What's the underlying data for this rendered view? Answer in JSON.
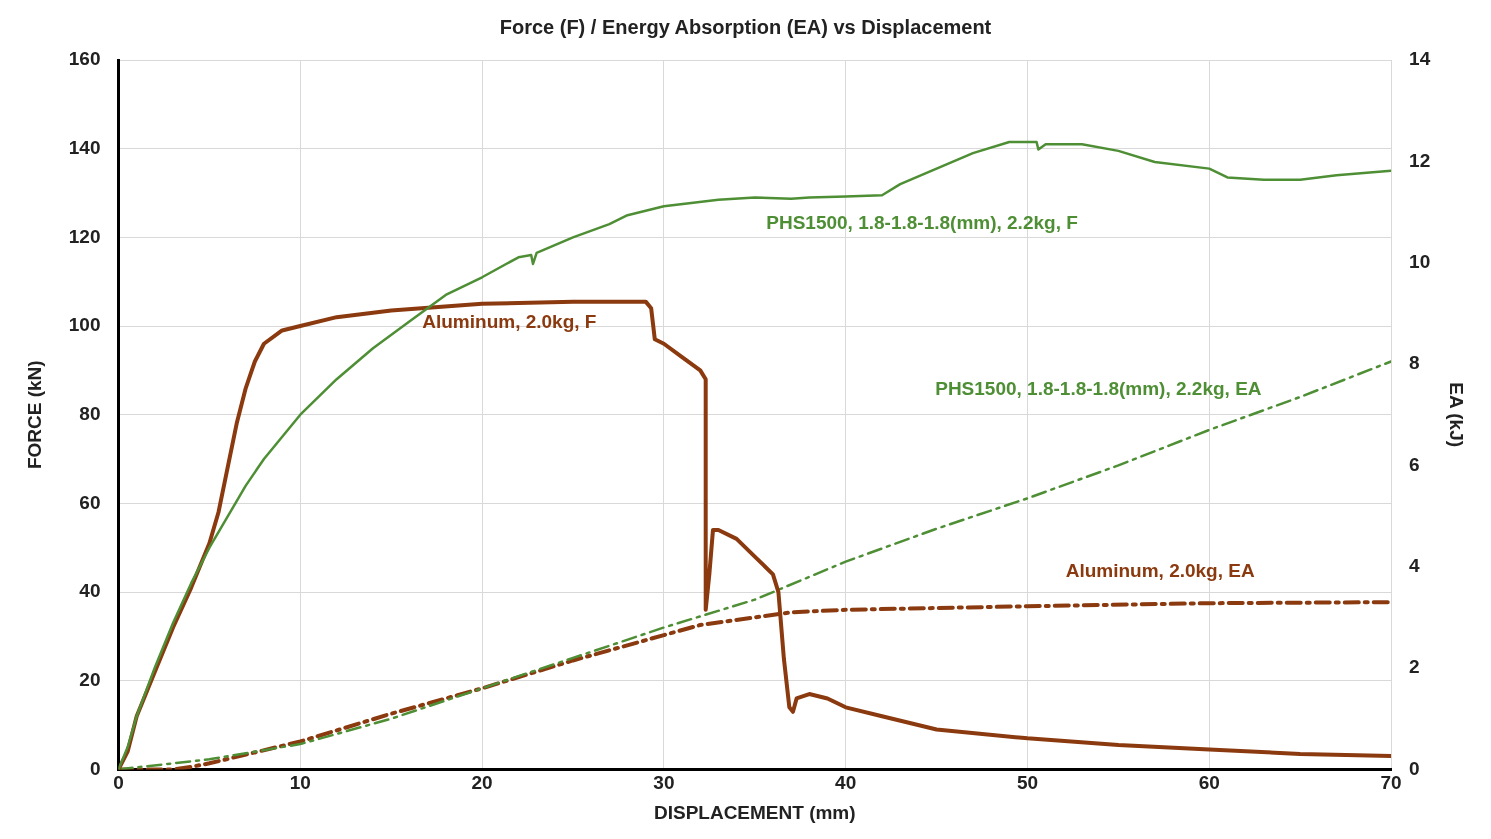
{
  "chart_data": {
    "type": "line",
    "title": "Force (F) / Energy Absorption (EA) vs Displacement",
    "xlabel": "DISPLACEMENT (mm)",
    "ylabel": "FORCE (kN)",
    "y2label": "EA (kJ)",
    "xlim": [
      0,
      70
    ],
    "xticks": [
      0,
      10,
      20,
      30,
      40,
      50,
      60,
      70
    ],
    "ylim": [
      0,
      160
    ],
    "yticks": [
      0,
      20,
      40,
      60,
      80,
      100,
      120,
      140,
      160
    ],
    "y2lim": [
      0,
      14
    ],
    "y2ticks": [
      0,
      2,
      4,
      6,
      8,
      10,
      12,
      14
    ],
    "grid": true,
    "legend": false,
    "marker": "none",
    "series": [
      {
        "name": "PHS1500, 1.8-1.8-1.8(mm), 2.2kg, F",
        "color": "#4e8f35",
        "line_style": "solid",
        "x": [
          0,
          0.5,
          1,
          2,
          3,
          4,
          5,
          6,
          7,
          8,
          10,
          12,
          14,
          16,
          18,
          20,
          22,
          22.7,
          22.8,
          23,
          25,
          27,
          28,
          30,
          33,
          35,
          37,
          38,
          40,
          42,
          43,
          45,
          47,
          49,
          50.5,
          50.6,
          51,
          53,
          55,
          57,
          60,
          61,
          63,
          65,
          67,
          70
        ],
        "values": [
          0,
          5,
          12,
          23,
          33,
          42,
          50,
          57,
          64,
          70,
          80,
          88,
          95,
          101,
          107,
          111,
          115.5,
          116,
          114,
          116.5,
          120,
          123,
          125,
          127,
          128.5,
          129,
          128.7,
          129,
          129.2,
          129.5,
          132,
          135.5,
          139,
          141.5,
          141.5,
          139.8,
          141,
          141,
          139.5,
          137,
          135.5,
          133.5,
          133,
          133,
          134,
          135
        ]
      },
      {
        "name": "Aluminum, 2.0kg, F",
        "color": "#8b3a0f",
        "line_style": "solid",
        "x": [
          0,
          0.5,
          1,
          2,
          3,
          4,
          5,
          5.5,
          6,
          6.5,
          7,
          7.5,
          8,
          9,
          10,
          12,
          15,
          20,
          25,
          29,
          29.3,
          29.5,
          30,
          31,
          32,
          32.3,
          32.3,
          32.5,
          32.7,
          33,
          34,
          35,
          36,
          36.3,
          36.6,
          36.9,
          37.1,
          37.3,
          38,
          39,
          40,
          42,
          45,
          50,
          55,
          60,
          65,
          70
        ],
        "values": [
          0,
          4,
          12,
          22,
          32,
          41,
          51,
          58,
          68,
          78,
          86,
          92,
          96,
          99,
          100,
          102,
          103.5,
          105,
          105.5,
          105.5,
          104,
          97,
          96,
          93,
          90,
          88,
          36,
          44,
          54,
          54,
          52,
          48,
          44,
          40,
          25,
          14,
          13,
          16,
          17,
          16,
          14,
          12,
          9,
          7,
          5.5,
          4.5,
          3.5,
          3
        ]
      },
      {
        "name": "PHS1500, 1.8-1.8-1.8(mm), 2.2kg, EA",
        "color": "#4e8f35",
        "line_style": "dashed",
        "axis": "y2",
        "x": [
          0,
          5,
          10,
          15,
          20,
          25,
          30,
          35,
          40,
          45,
          50,
          55,
          60,
          65,
          70
        ],
        "values": [
          0,
          0.2,
          0.5,
          1.0,
          1.6,
          2.2,
          2.8,
          3.35,
          4.1,
          4.75,
          5.35,
          6.0,
          6.7,
          7.35,
          8.05
        ]
      },
      {
        "name": "Aluminum, 2.0kg, EA",
        "color": "#8b3a0f",
        "line_style": "dashed",
        "axis": "y2",
        "x": [
          0,
          3,
          4,
          5,
          10,
          15,
          20,
          25,
          30,
          32,
          35,
          37,
          40,
          50,
          60,
          70
        ],
        "values": [
          0,
          0,
          0.05,
          0.12,
          0.55,
          1.1,
          1.6,
          2.15,
          2.65,
          2.85,
          3.0,
          3.1,
          3.15,
          3.22,
          3.28,
          3.3
        ]
      }
    ]
  }
}
